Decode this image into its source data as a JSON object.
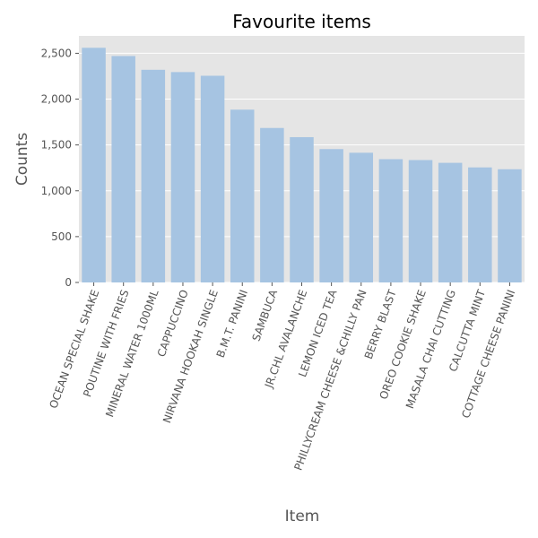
{
  "chart_data": {
    "type": "bar",
    "title": "Favourite items",
    "xlabel": "Item",
    "ylabel": "Counts",
    "categories": [
      "OCEAN SPECIAL SHAKE",
      "POUTINE WITH FRIES",
      "MINERAL WATER 1000ML",
      "CAPPUCCINO",
      "NIRVANA HOOKAH SINGLE",
      "B.M.T. PANINI",
      "SAMBUCA",
      "JR.CHL AVALANCHE",
      "LEMON ICED TEA",
      "PHILLYCREAM CHEESE &CHILLY PAN",
      "BERRY BLAST",
      "OREO COOKIE SHAKE",
      "MASALA CHAI CUTTING",
      "CALCUTTA MINT",
      "COTTAGE CHEESE PANINI"
    ],
    "values": [
      2560,
      2470,
      2320,
      2295,
      2255,
      1885,
      1685,
      1585,
      1455,
      1415,
      1345,
      1335,
      1305,
      1255,
      1235
    ],
    "yticks": [
      0,
      500,
      1000,
      1500,
      2000,
      2500
    ],
    "ytick_labels": [
      "0",
      "500",
      "1,000",
      "1,500",
      "2,000",
      "2,500"
    ],
    "ylim": [
      0,
      2690
    ],
    "grid": true,
    "colors": {
      "bar": "#a6c4e2",
      "panel": "#e5e5e5",
      "grid": "#ffffff",
      "text": "#555555"
    }
  }
}
